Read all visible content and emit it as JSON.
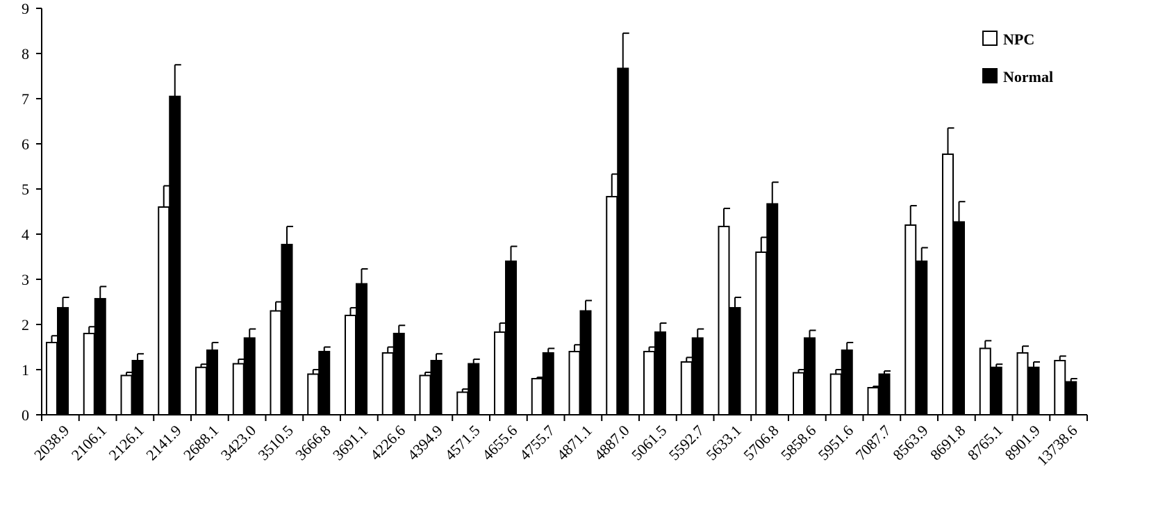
{
  "chart_data": {
    "type": "bar",
    "title": "",
    "xlabel": "",
    "ylabel": "",
    "ylim": [
      0,
      9
    ],
    "y_ticks": [
      "0",
      "1",
      "2",
      "3",
      "4",
      "5",
      "6",
      "7",
      "8",
      "9"
    ],
    "grid": false,
    "legend_position": "top-right",
    "error_bars": true,
    "categories": [
      "2038.9",
      "2106.1",
      "2126.1",
      "2141.9",
      "2688.1",
      "3423.0",
      "3510.5",
      "3666.8",
      "3691.1",
      "4226.6",
      "4394.9",
      "4571.5",
      "4655.6",
      "4755.7",
      "4871.1",
      "4887.0",
      "5061.5",
      "5592.7",
      "5633.1",
      "5706.8",
      "5858.6",
      "5951.6",
      "7087.7",
      "8563.9",
      "8691.8",
      "8765.1",
      "8901.9",
      "13738.6"
    ],
    "series": [
      {
        "name": "NPC",
        "color": "#ffffff",
        "values": [
          1.6,
          1.8,
          0.87,
          4.6,
          1.05,
          1.13,
          2.3,
          0.9,
          2.2,
          1.37,
          0.87,
          0.5,
          1.83,
          0.8,
          1.4,
          4.83,
          1.4,
          1.17,
          4.17,
          3.6,
          0.93,
          0.9,
          0.6,
          4.2,
          5.77,
          1.47,
          1.37,
          1.2
        ],
        "errors": [
          0.15,
          0.15,
          0.07,
          0.47,
          0.07,
          0.1,
          0.2,
          0.1,
          0.17,
          0.13,
          0.07,
          0.07,
          0.2,
          0.03,
          0.15,
          0.5,
          0.1,
          0.1,
          0.4,
          0.33,
          0.07,
          0.1,
          0.03,
          0.43,
          0.58,
          0.17,
          0.15,
          0.1
        ]
      },
      {
        "name": "Normal",
        "color": "#000000",
        "values": [
          2.37,
          2.57,
          1.2,
          7.05,
          1.43,
          1.7,
          3.77,
          1.4,
          2.9,
          1.8,
          1.2,
          1.13,
          3.4,
          1.37,
          2.3,
          7.67,
          1.83,
          1.7,
          2.37,
          4.67,
          1.7,
          1.43,
          0.9,
          3.4,
          4.27,
          1.05,
          1.05,
          0.73
        ],
        "errors": [
          0.23,
          0.27,
          0.15,
          0.7,
          0.17,
          0.2,
          0.4,
          0.1,
          0.33,
          0.18,
          0.15,
          0.1,
          0.33,
          0.1,
          0.23,
          0.78,
          0.2,
          0.2,
          0.23,
          0.48,
          0.17,
          0.17,
          0.07,
          0.3,
          0.45,
          0.07,
          0.12,
          0.07
        ]
      }
    ]
  }
}
